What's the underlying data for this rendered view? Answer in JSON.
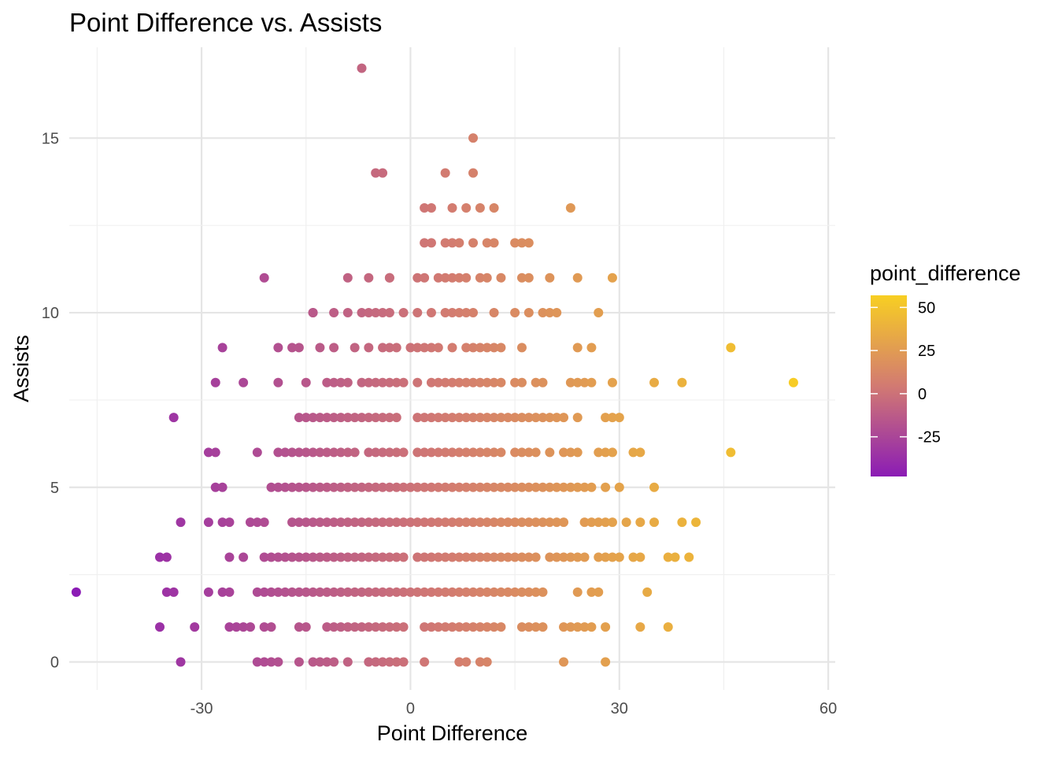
{
  "chart_data": {
    "type": "scatter",
    "title": "Point Difference vs. Assists",
    "xlabel": "Point Difference",
    "ylabel": "Assists",
    "xlim": [
      -49,
      61
    ],
    "ylim": [
      -0.8,
      17.6
    ],
    "x_ticks": [
      -30,
      0,
      30,
      60
    ],
    "x_tick_labels": [
      "-30",
      "0",
      "30",
      "60"
    ],
    "y_ticks": [
      0,
      5,
      10,
      15
    ],
    "y_tick_labels": [
      "0",
      "5",
      "10",
      "15"
    ],
    "grid": true,
    "legend": {
      "title": "point_difference",
      "position": "right",
      "type": "colorbar",
      "range": [
        -48,
        57
      ],
      "breaks": [
        50,
        25,
        0,
        -25
      ],
      "break_labels": [
        "50",
        "25",
        "0",
        "-25"
      ],
      "colors": {
        "low": "#8B1CB5",
        "mid": "#D27A72",
        "high": "#F8CF22"
      }
    },
    "rows": [
      {
        "y": 17,
        "x": [
          -7
        ]
      },
      {
        "y": 15,
        "x": [
          9
        ]
      },
      {
        "y": 14,
        "x": [
          -5,
          -4,
          5,
          9
        ]
      },
      {
        "y": 13,
        "x": [
          2,
          3,
          6,
          8,
          10,
          12,
          23
        ]
      },
      {
        "y": 12,
        "x": [
          2,
          3,
          5,
          6,
          7,
          9,
          11,
          12,
          15,
          16,
          17
        ]
      },
      {
        "y": 11,
        "x": [
          -21,
          -9,
          -6,
          -3,
          -3,
          1,
          2,
          4,
          5,
          6,
          7,
          8,
          10,
          11,
          13,
          16,
          17,
          20,
          24,
          29
        ]
      },
      {
        "y": 10,
        "x": [
          -14,
          -14,
          -11,
          -9,
          -7,
          -6,
          -5,
          -4,
          -3,
          -1,
          1,
          3,
          5,
          6,
          7,
          8,
          9,
          12,
          15,
          17,
          19,
          20,
          21,
          27
        ]
      },
      {
        "y": 9,
        "x": [
          -27,
          -19,
          -17,
          -16,
          -13,
          -11,
          -8,
          -6,
          -4,
          -3,
          -2,
          0,
          1,
          2,
          3,
          4,
          6,
          8,
          9,
          10,
          11,
          12,
          13,
          16,
          24,
          26,
          46
        ]
      },
      {
        "y": 8,
        "x": [
          -28,
          -24,
          -19,
          -15,
          -12,
          -11,
          -10,
          -9,
          -7,
          -6,
          -5,
          -4,
          -3,
          -2,
          -1,
          1,
          3,
          4,
          5,
          6,
          7,
          8,
          9,
          10,
          11,
          12,
          13,
          15,
          16,
          18,
          19,
          23,
          24,
          25,
          26,
          29,
          35,
          39,
          55
        ]
      },
      {
        "y": 7,
        "x": [
          -34,
          -16,
          -15,
          -14,
          -13,
          -12,
          -11,
          -10,
          -9,
          -8,
          -7,
          -6,
          -5,
          -4,
          -3,
          -2,
          1,
          2,
          3,
          4,
          5,
          6,
          7,
          8,
          9,
          10,
          11,
          12,
          13,
          14,
          15,
          16,
          17,
          18,
          19,
          20,
          21,
          22,
          24,
          28,
          29,
          30
        ]
      },
      {
        "y": 6,
        "x": [
          -29,
          -28,
          -22,
          -19,
          -18,
          -17,
          -16,
          -15,
          -14,
          -13,
          -12,
          -11,
          -10,
          -9,
          -8,
          -6,
          -5,
          -4,
          -3,
          -2,
          -1,
          1,
          2,
          3,
          4,
          5,
          6,
          7,
          8,
          9,
          10,
          11,
          12,
          13,
          15,
          16,
          17,
          18,
          20,
          22,
          23,
          24,
          27,
          28,
          29,
          32,
          33,
          46
        ]
      },
      {
        "y": 5,
        "x": [
          -28,
          -27,
          -20,
          -19,
          -18,
          -17,
          -16,
          -15,
          -14,
          -13,
          -12,
          -11,
          -10,
          -9,
          -8,
          -7,
          -6,
          -5,
          -4,
          -3,
          -2,
          -1,
          0,
          1,
          2,
          3,
          4,
          5,
          6,
          7,
          8,
          9,
          10,
          11,
          12,
          13,
          14,
          15,
          16,
          17,
          18,
          19,
          20,
          21,
          22,
          23,
          24,
          25,
          26,
          28,
          30,
          35
        ]
      },
      {
        "y": 4,
        "x": [
          -33,
          -29,
          -27,
          -26,
          -23,
          -22,
          -21,
          -17,
          -16,
          -15,
          -14,
          -13,
          -12,
          -11,
          -10,
          -9,
          -8,
          -7,
          -6,
          -5,
          -4,
          -3,
          -2,
          -1,
          0,
          1,
          2,
          3,
          4,
          5,
          6,
          7,
          8,
          9,
          10,
          11,
          12,
          13,
          14,
          15,
          16,
          17,
          18,
          19,
          20,
          21,
          22,
          25,
          26,
          27,
          28,
          29,
          31,
          33,
          35,
          39,
          41
        ]
      },
      {
        "y": 3,
        "x": [
          -36,
          -35,
          -26,
          -24,
          -21,
          -20,
          -19,
          -18,
          -17,
          -16,
          -15,
          -14,
          -13,
          -12,
          -11,
          -10,
          -9,
          -8,
          -7,
          -6,
          -5,
          -4,
          -3,
          -2,
          -1,
          1,
          2,
          3,
          4,
          5,
          6,
          7,
          8,
          9,
          10,
          11,
          12,
          13,
          14,
          15,
          16,
          17,
          18,
          20,
          21,
          22,
          23,
          24,
          25,
          27,
          28,
          29,
          30,
          32,
          33,
          37,
          38,
          40
        ]
      },
      {
        "y": 2,
        "x": [
          -48,
          -35,
          -34,
          -29,
          -27,
          -26,
          -22,
          -21,
          -20,
          -19,
          -18,
          -17,
          -16,
          -15,
          -14,
          -13,
          -12,
          -11,
          -10,
          -9,
          -8,
          -7,
          -6,
          -5,
          -4,
          -3,
          -2,
          -1,
          0,
          1,
          2,
          3,
          4,
          5,
          6,
          7,
          8,
          9,
          10,
          11,
          12,
          13,
          14,
          15,
          16,
          17,
          18,
          19,
          24,
          26,
          27,
          34
        ]
      },
      {
        "y": 1,
        "x": [
          -36,
          -31,
          -26,
          -25,
          -24,
          -23,
          -21,
          -20,
          -16,
          -15,
          -12,
          -11,
          -10,
          -9,
          -8,
          -7,
          -6,
          -5,
          -4,
          -3,
          -2,
          -1,
          2,
          3,
          4,
          5,
          6,
          7,
          8,
          9,
          10,
          11,
          12,
          13,
          16,
          17,
          18,
          19,
          22,
          23,
          24,
          25,
          26,
          28,
          33,
          37
        ]
      },
      {
        "y": 0,
        "x": [
          -33,
          -22,
          -21,
          -20,
          -19,
          -16,
          -14,
          -13,
          -12,
          -11,
          -9,
          -6,
          -5,
          -4,
          -3,
          -2,
          -1,
          2,
          7,
          8,
          10,
          11,
          22,
          28
        ]
      }
    ]
  }
}
